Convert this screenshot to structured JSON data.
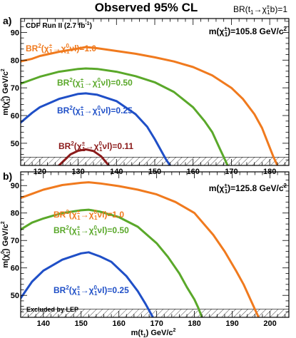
{
  "figure": {
    "title": "Observed 95% CL",
    "corner_label_parts": [
      "BR(",
      "t",
      "1",
      "→",
      "χ",
      "±",
      "1",
      "b)=1"
    ]
  },
  "colors": {
    "orange": "#f07a1e",
    "green": "#5aa82a",
    "blue": "#1f4fc7",
    "darkred": "#8b1a1a",
    "frame": "#000000",
    "hatch": "#555555"
  },
  "chart_data": [
    {
      "type": "line",
      "panel_label": "a)",
      "annotation": "CDF Run II (2.7 fb",
      "annotation_sup": "-1",
      "annotation_close": ")",
      "mass_label_prefix": "m(",
      "mass_label_sym": "χ",
      "mass_label_sup": "±",
      "mass_label_sub": "1",
      "mass_label_value": ")=105.8 GeV/c",
      "mass_label_exp": "2",
      "ylabel_parts": [
        "m(",
        "χ",
        "0",
        "1",
        ") GeV/c",
        "2"
      ],
      "xlim": [
        115,
        185
      ],
      "ylim": [
        42,
        95
      ],
      "xticks": [
        120,
        130,
        140,
        150,
        160,
        170,
        180
      ],
      "yticks": [
        50,
        60,
        70,
        80,
        90
      ],
      "excluded_below": 45,
      "series": [
        {
          "name": "BR²(χ̃±1→χ̃01νl)=1.0",
          "value_text": "=1.0",
          "color": "orange",
          "x": [
            115,
            118,
            120,
            125,
            130,
            132,
            135,
            140,
            145,
            150,
            155,
            160,
            165,
            170,
            173,
            176,
            178,
            180,
            181,
            182
          ],
          "y": [
            79.5,
            80.5,
            81.5,
            83.0,
            84.2,
            84.7,
            84.3,
            83.3,
            82.3,
            81.0,
            79.5,
            77.5,
            74.5,
            70.0,
            66.0,
            60.5,
            55.5,
            48.5,
            45.0,
            42.0
          ]
        },
        {
          "name": "BR²(χ̃±1→χ̃01νl)=0.50",
          "value_text": "=0.50",
          "color": "green",
          "x": [
            115,
            118,
            120,
            125,
            130,
            132,
            135,
            140,
            145,
            150,
            155,
            160,
            163,
            165,
            167,
            168,
            169
          ],
          "y": [
            71.5,
            73.0,
            74.0,
            75.8,
            76.8,
            77.0,
            76.8,
            75.8,
            74.2,
            72.0,
            68.5,
            63.0,
            58.0,
            54.0,
            48.0,
            45.0,
            42.0
          ]
        },
        {
          "name": "BR²(χ̃±1→χ̃01νl)=0.25",
          "value_text": "=0.25",
          "color": "blue",
          "x": [
            115,
            118,
            120,
            125,
            130,
            132,
            135,
            140,
            145,
            148,
            150,
            152,
            153,
            154
          ],
          "y": [
            57.5,
            61.0,
            63.0,
            66.0,
            67.8,
            68.0,
            67.5,
            65.2,
            60.5,
            56.0,
            51.5,
            46.5,
            44.0,
            42.0
          ]
        },
        {
          "name": "BR²(χ̃±1→χ̃01νl)=0.11",
          "value_text": "=0.11",
          "color": "darkred",
          "x": [
            125,
            128,
            130,
            132,
            134,
            136,
            138
          ],
          "y": [
            42.0,
            46.0,
            47.3,
            47.8,
            47.2,
            45.3,
            42.0
          ]
        }
      ]
    },
    {
      "type": "line",
      "panel_label": "b)",
      "annotation": "Excluded by LEP",
      "mass_label_prefix": "m(",
      "mass_label_sym": "χ",
      "mass_label_sup": "±",
      "mass_label_sub": "1",
      "mass_label_value": ")=125.8 GeV/c",
      "mass_label_exp": "2",
      "ylabel_parts": [
        "m(",
        "χ",
        "0",
        "1",
        ") GeV/c",
        "2"
      ],
      "xlabel_parts": [
        "m(",
        "t",
        "1",
        ") GeV/c",
        "2"
      ],
      "xlim": [
        134,
        205
      ],
      "ylim": [
        42,
        95
      ],
      "xticks": [
        140,
        150,
        160,
        170,
        180,
        190,
        200
      ],
      "yticks": [
        50,
        60,
        70,
        80,
        90
      ],
      "excluded_below": 45,
      "series": [
        {
          "name": "BR²(χ̃±1→χ̃01νl)=1.0",
          "value_text": "=1.0",
          "color": "orange",
          "x": [
            134,
            137,
            140,
            145,
            150,
            152,
            155,
            160,
            165,
            170,
            175,
            180,
            185,
            188,
            191,
            193,
            195,
            196,
            197
          ],
          "y": [
            85.5,
            87.0,
            88.5,
            90.2,
            91.0,
            91.2,
            90.8,
            89.8,
            88.5,
            86.8,
            84.0,
            80.0,
            72.0,
            66.0,
            59.0,
            54.0,
            48.0,
            45.0,
            42.0
          ]
        },
        {
          "name": "BR²(χ̃±1→χ̃01νl)=0.50",
          "value_text": "=0.50",
          "color": "green",
          "x": [
            134,
            137,
            140,
            145,
            150,
            152,
            155,
            160,
            165,
            170,
            173,
            176,
            178,
            180,
            181,
            182
          ],
          "y": [
            74.0,
            76.5,
            78.0,
            80.0,
            81.0,
            81.2,
            80.5,
            78.5,
            75.0,
            69.0,
            64.0,
            58.0,
            53.0,
            48.5,
            45.5,
            42.0
          ]
        },
        {
          "name": "BR²(χ̃±1→χ̃01νl)=0.25",
          "value_text": "=0.25",
          "color": "blue",
          "x": [
            134,
            137,
            140,
            145,
            150,
            152,
            155,
            158,
            162,
            165,
            167,
            168,
            169
          ],
          "y": [
            49.0,
            55.0,
            59.0,
            63.0,
            65.3,
            65.7,
            64.2,
            62.2,
            57.0,
            51.5,
            47.0,
            44.5,
            42.0
          ]
        }
      ]
    }
  ]
}
